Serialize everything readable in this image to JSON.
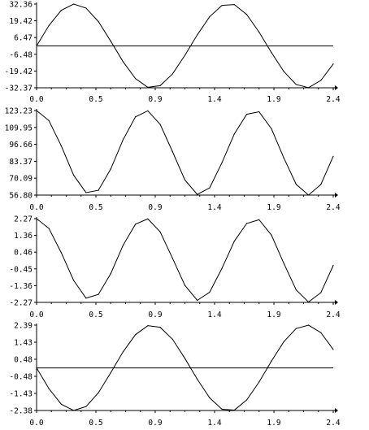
{
  "chart_data": [
    {
      "type": "line",
      "title": "",
      "xlabel": "",
      "ylabel": "",
      "xlim": [
        0.0,
        2.4
      ],
      "ylim": [
        -32.37,
        32.36
      ],
      "xticks": [
        "0.0",
        "0.5",
        "0.9",
        "1.4",
        "1.9",
        "2.4"
      ],
      "yticks": [
        "32.36",
        "19.42",
        "6.47",
        "-6.48",
        "-19.42",
        "-32.37"
      ],
      "reference_line_y": 0,
      "series": [
        {
          "x": [
            0.0,
            0.1,
            0.2,
            0.3,
            0.4,
            0.5,
            0.6,
            0.7,
            0.8,
            0.9,
            1.0,
            1.1,
            1.2,
            1.3,
            1.4,
            1.5,
            1.6,
            1.7,
            1.8,
            1.9,
            2.0,
            2.1,
            2.2,
            2.3,
            2.4
          ],
          "values": [
            0.0,
            15.77,
            27.55,
            32.36,
            29.24,
            18.86,
            3.65,
            -12.21,
            -25.24,
            -32.01,
            -30.72,
            -21.65,
            -7.24,
            8.53,
            22.59,
            31.33,
            31.99,
            24.31,
            10.68,
            -5.14,
            -19.77,
            -29.81,
            -32.3,
            -26.65,
            -14.0
          ]
        }
      ]
    },
    {
      "type": "line",
      "title": "",
      "xlabel": "",
      "ylabel": "",
      "xlim": [
        0.0,
        2.4
      ],
      "ylim": [
        56.8,
        123.23
      ],
      "xticks": [
        "0.0",
        "0.5",
        "0.9",
        "1.4",
        "1.9",
        "2.4"
      ],
      "yticks": [
        "123.23",
        "109.95",
        "96.66",
        "83.37",
        "70.09",
        "56.80"
      ],
      "series": [
        {
          "x": [
            0.0,
            0.1,
            0.2,
            0.3,
            0.4,
            0.5,
            0.6,
            0.7,
            0.8,
            0.9,
            1.0,
            1.1,
            1.2,
            1.3,
            1.4,
            1.5,
            1.6,
            1.7,
            1.8,
            1.9,
            2.0,
            2.1,
            2.2,
            2.3,
            2.4
          ],
          "values": [
            123.23,
            115.3,
            95.39,
            72.4,
            58.76,
            60.57,
            77.31,
            100.37,
            118.27,
            123.01,
            112.36,
            90.89,
            68.67,
            57.29,
            62.45,
            82.32,
            104.91,
            120.27,
            122.24,
            108.94,
            86.04,
            65.26,
            56.82,
            65.12,
            87.26
          ]
        }
      ]
    },
    {
      "type": "line",
      "title": "",
      "xlabel": "",
      "ylabel": "",
      "xlim": [
        0.0,
        2.4
      ],
      "ylim": [
        -2.27,
        2.27
      ],
      "xticks": [
        "0.0",
        "0.5",
        "0.9",
        "1.4",
        "1.9",
        "2.4"
      ],
      "yticks": [
        "2.27",
        "1.36",
        "0.46",
        "-0.45",
        "-1.36",
        "-2.27"
      ],
      "series": [
        {
          "x": [
            0.0,
            0.1,
            0.2,
            0.3,
            0.4,
            0.5,
            0.6,
            0.7,
            0.8,
            0.9,
            1.0,
            1.1,
            1.2,
            1.3,
            1.4,
            1.5,
            1.6,
            1.7,
            1.8,
            1.9,
            2.0,
            2.1,
            2.2,
            2.3,
            2.4
          ],
          "values": [
            2.27,
            1.74,
            0.42,
            -1.08,
            -2.04,
            -1.84,
            -0.71,
            0.83,
            1.97,
            2.26,
            1.55,
            0.12,
            -1.35,
            -2.16,
            -1.72,
            -0.42,
            1.05,
            2.01,
            2.21,
            1.38,
            -0.15,
            -1.59,
            -2.25,
            -1.74,
            -0.27
          ]
        }
      ]
    },
    {
      "type": "line",
      "title": "",
      "xlabel": "",
      "ylabel": "",
      "xlim": [
        0.0,
        2.4
      ],
      "ylim": [
        -2.38,
        2.39
      ],
      "xticks": [
        "0.0",
        "0.5",
        "0.9",
        "1.4",
        "1.9",
        "2.4"
      ],
      "yticks": [
        "2.39",
        "1.43",
        "0.48",
        "-0.48",
        "-1.43",
        "-2.38"
      ],
      "reference_line_y": 0,
      "series": [
        {
          "x": [
            0.0,
            0.1,
            0.2,
            0.3,
            0.4,
            0.5,
            0.6,
            0.7,
            0.8,
            0.9,
            1.0,
            1.1,
            1.2,
            1.3,
            1.4,
            1.5,
            1.6,
            1.7,
            1.8,
            1.9,
            2.0,
            2.1,
            2.2,
            2.3,
            2.4
          ],
          "values": [
            0.0,
            -1.16,
            -2.03,
            -2.38,
            -2.16,
            -1.39,
            -0.27,
            0.9,
            1.86,
            2.36,
            2.27,
            1.6,
            0.53,
            -0.63,
            -1.67,
            -2.31,
            -2.36,
            -1.79,
            -0.79,
            0.38,
            1.46,
            2.2,
            2.39,
            1.97,
            1.03
          ]
        }
      ]
    }
  ]
}
